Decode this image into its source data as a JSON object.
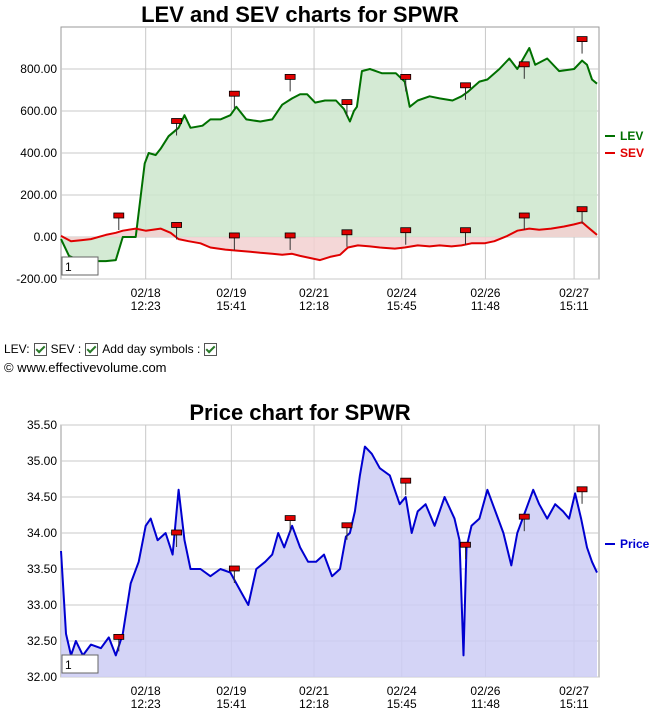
{
  "controls": {
    "lev_label": "LEV:",
    "sev_label": "SEV :",
    "day_symbols_label": "Add day symbols :"
  },
  "copyright": "© www.effectivevolume.com",
  "chart_data": [
    {
      "type": "area",
      "title": "LEV and SEV charts for SPWR",
      "ylim": [
        -200,
        1000
      ],
      "yticks": [
        -200,
        0,
        200,
        400,
        600,
        800
      ],
      "ytick_labels": [
        "-200.00",
        "0.00",
        "200.00",
        "400.00",
        "600.00",
        "800.00"
      ],
      "x_tick_labels": [
        [
          "02/18",
          "12:23"
        ],
        [
          "02/19",
          "15:41"
        ],
        [
          "02/21",
          "12:18"
        ],
        [
          "02/24",
          "15:45"
        ],
        [
          "02/26",
          "11:48"
        ],
        [
          "02/27",
          "15:11"
        ]
      ],
      "x_tick_positions": [
        85,
        171,
        254,
        342,
        426,
        515
      ],
      "x_count": 540,
      "grid": true,
      "legend_position": "right",
      "zoom_label": "1",
      "series": [
        {
          "name": "LEV",
          "color": "#007000",
          "fill": "#cde6cd",
          "points": [
            [
              0,
              -10
            ],
            [
              8,
              -90
            ],
            [
              18,
              -110
            ],
            [
              30,
              -115
            ],
            [
              45,
              -115
            ],
            [
              55,
              -110
            ],
            [
              62,
              0
            ],
            [
              75,
              0
            ],
            [
              84,
              350
            ],
            [
              88,
              400
            ],
            [
              95,
              390
            ],
            [
              100,
              420
            ],
            [
              108,
              480
            ],
            [
              118,
              520
            ],
            [
              124,
              580
            ],
            [
              130,
              520
            ],
            [
              142,
              530
            ],
            [
              150,
              560
            ],
            [
              160,
              560
            ],
            [
              170,
              580
            ],
            [
              176,
              620
            ],
            [
              186,
              560
            ],
            [
              200,
              550
            ],
            [
              212,
              560
            ],
            [
              222,
              630
            ],
            [
              232,
              660
            ],
            [
              240,
              680
            ],
            [
              247,
              680
            ],
            [
              255,
              640
            ],
            [
              265,
              650
            ],
            [
              276,
              650
            ],
            [
              284,
              610
            ],
            [
              290,
              550
            ],
            [
              294,
              600
            ],
            [
              297,
              620
            ],
            [
              302,
              790
            ],
            [
              310,
              800
            ],
            [
              322,
              780
            ],
            [
              336,
              780
            ],
            [
              345,
              740
            ],
            [
              350,
              620
            ],
            [
              358,
              650
            ],
            [
              370,
              670
            ],
            [
              380,
              660
            ],
            [
              393,
              650
            ],
            [
              402,
              670
            ],
            [
              408,
              690
            ],
            [
              420,
              740
            ],
            [
              428,
              750
            ],
            [
              440,
              800
            ],
            [
              450,
              850
            ],
            [
              458,
              800
            ],
            [
              470,
              900
            ],
            [
              476,
              820
            ],
            [
              488,
              850
            ],
            [
              500,
              790
            ],
            [
              515,
              800
            ],
            [
              523,
              840
            ],
            [
              528,
              820
            ],
            [
              533,
              750
            ],
            [
              538,
              730
            ]
          ]
        },
        {
          "name": "SEV",
          "color": "#e00000",
          "fill": "#f2d0d0",
          "points": [
            [
              0,
              5
            ],
            [
              10,
              -20
            ],
            [
              20,
              -15
            ],
            [
              30,
              -10
            ],
            [
              45,
              10
            ],
            [
              55,
              20
            ],
            [
              62,
              30
            ],
            [
              75,
              40
            ],
            [
              85,
              30
            ],
            [
              100,
              40
            ],
            [
              110,
              20
            ],
            [
              118,
              -10
            ],
            [
              128,
              -20
            ],
            [
              140,
              -30
            ],
            [
              150,
              -50
            ],
            [
              165,
              -60
            ],
            [
              178,
              -65
            ],
            [
              190,
              -70
            ],
            [
              200,
              -75
            ],
            [
              212,
              -80
            ],
            [
              222,
              -85
            ],
            [
              232,
              -80
            ],
            [
              240,
              -90
            ],
            [
              250,
              -100
            ],
            [
              260,
              -110
            ],
            [
              270,
              -95
            ],
            [
              280,
              -85
            ],
            [
              288,
              -50
            ],
            [
              298,
              -40
            ],
            [
              310,
              -45
            ],
            [
              320,
              -50
            ],
            [
              335,
              -55
            ],
            [
              345,
              -50
            ],
            [
              358,
              -40
            ],
            [
              370,
              -45
            ],
            [
              380,
              -40
            ],
            [
              392,
              -45
            ],
            [
              402,
              -40
            ],
            [
              412,
              -30
            ],
            [
              425,
              -30
            ],
            [
              435,
              -20
            ],
            [
              448,
              5
            ],
            [
              458,
              30
            ],
            [
              470,
              40
            ],
            [
              480,
              35
            ],
            [
              492,
              40
            ],
            [
              505,
              50
            ],
            [
              515,
              60
            ],
            [
              523,
              70
            ],
            [
              528,
              50
            ],
            [
              533,
              30
            ],
            [
              538,
              10
            ]
          ]
        }
      ],
      "day_markers": [
        {
          "x": 58,
          "value": 100
        },
        {
          "x": 116,
          "value": 55
        },
        {
          "x": 174,
          "value": 5
        },
        {
          "x": 230,
          "value": 5
        },
        {
          "x": 287,
          "value": 20
        },
        {
          "x": 346,
          "value": 30
        },
        {
          "x": 406,
          "value": 30
        },
        {
          "x": 465,
          "value": 100
        },
        {
          "x": 523,
          "value": 130
        },
        {
          "x": 116,
          "value": 550
        },
        {
          "x": 174,
          "value": 680
        },
        {
          "x": 230,
          "value": 760
        },
        {
          "x": 287,
          "value": 640
        },
        {
          "x": 346,
          "value": 760
        },
        {
          "x": 406,
          "value": 720
        },
        {
          "x": 465,
          "value": 820
        },
        {
          "x": 523,
          "value": 940
        }
      ]
    },
    {
      "type": "area",
      "title": "Price chart for SPWR",
      "ylim": [
        32.0,
        35.5
      ],
      "yticks": [
        32.0,
        32.5,
        33.0,
        33.5,
        34.0,
        34.5,
        35.0,
        35.5
      ],
      "ytick_labels": [
        "32.00",
        "32.50",
        "33.00",
        "33.50",
        "34.00",
        "34.50",
        "35.00",
        "35.50"
      ],
      "x_tick_labels": [
        [
          "02/18",
          "12:23"
        ],
        [
          "02/19",
          "15:41"
        ],
        [
          "02/21",
          "12:18"
        ],
        [
          "02/24",
          "15:45"
        ],
        [
          "02/26",
          "11:48"
        ],
        [
          "02/27",
          "15:11"
        ]
      ],
      "x_tick_positions": [
        85,
        171,
        254,
        342,
        426,
        515
      ],
      "x_count": 540,
      "grid": true,
      "legend_position": "right",
      "zoom_label": "1",
      "series": [
        {
          "name": "Price",
          "color": "#0000d0",
          "fill": "#ccccf5",
          "points": [
            [
              0,
              33.75
            ],
            [
              5,
              32.6
            ],
            [
              10,
              32.3
            ],
            [
              15,
              32.5
            ],
            [
              22,
              32.3
            ],
            [
              30,
              32.45
            ],
            [
              40,
              32.4
            ],
            [
              48,
              32.55
            ],
            [
              55,
              32.3
            ],
            [
              62,
              32.6
            ],
            [
              70,
              33.3
            ],
            [
              78,
              33.6
            ],
            [
              85,
              34.1
            ],
            [
              90,
              34.2
            ],
            [
              97,
              33.9
            ],
            [
              105,
              34.0
            ],
            [
              112,
              33.7
            ],
            [
              118,
              34.6
            ],
            [
              124,
              33.9
            ],
            [
              130,
              33.5
            ],
            [
              140,
              33.5
            ],
            [
              150,
              33.4
            ],
            [
              160,
              33.5
            ],
            [
              170,
              33.45
            ],
            [
              180,
              33.2
            ],
            [
              188,
              33.0
            ],
            [
              196,
              33.5
            ],
            [
              205,
              33.6
            ],
            [
              212,
              33.7
            ],
            [
              218,
              34.0
            ],
            [
              224,
              33.8
            ],
            [
              232,
              34.1
            ],
            [
              240,
              33.8
            ],
            [
              248,
              33.6
            ],
            [
              256,
              33.6
            ],
            [
              264,
              33.7
            ],
            [
              272,
              33.4
            ],
            [
              280,
              33.5
            ],
            [
              286,
              33.95
            ],
            [
              290,
              34.0
            ],
            [
              295,
              34.3
            ],
            [
              300,
              34.8
            ],
            [
              305,
              35.2
            ],
            [
              312,
              35.1
            ],
            [
              320,
              34.9
            ],
            [
              330,
              34.8
            ],
            [
              340,
              34.4
            ],
            [
              346,
              34.5
            ],
            [
              352,
              34.0
            ],
            [
              358,
              34.3
            ],
            [
              366,
              34.4
            ],
            [
              375,
              34.1
            ],
            [
              385,
              34.5
            ],
            [
              395,
              34.2
            ],
            [
              400,
              33.9
            ],
            [
              404,
              32.3
            ],
            [
              407,
              33.8
            ],
            [
              412,
              34.1
            ],
            [
              420,
              34.2
            ],
            [
              428,
              34.6
            ],
            [
              436,
              34.3
            ],
            [
              444,
              34.0
            ],
            [
              452,
              33.55
            ],
            [
              458,
              34.0
            ],
            [
              466,
              34.3
            ],
            [
              474,
              34.6
            ],
            [
              480,
              34.4
            ],
            [
              488,
              34.2
            ],
            [
              496,
              34.4
            ],
            [
              504,
              34.3
            ],
            [
              510,
              34.2
            ],
            [
              516,
              34.55
            ],
            [
              522,
              34.2
            ],
            [
              528,
              33.8
            ],
            [
              533,
              33.6
            ],
            [
              538,
              33.45
            ]
          ]
        }
      ],
      "day_markers": [
        {
          "x": 58,
          "value": 32.55
        },
        {
          "x": 116,
          "value": 34.0
        },
        {
          "x": 174,
          "value": 33.5
        },
        {
          "x": 230,
          "value": 34.2
        },
        {
          "x": 287,
          "value": 34.1
        },
        {
          "x": 346,
          "value": 34.72
        },
        {
          "x": 406,
          "value": 33.83
        },
        {
          "x": 465,
          "value": 34.22
        },
        {
          "x": 523,
          "value": 34.6
        }
      ]
    }
  ]
}
